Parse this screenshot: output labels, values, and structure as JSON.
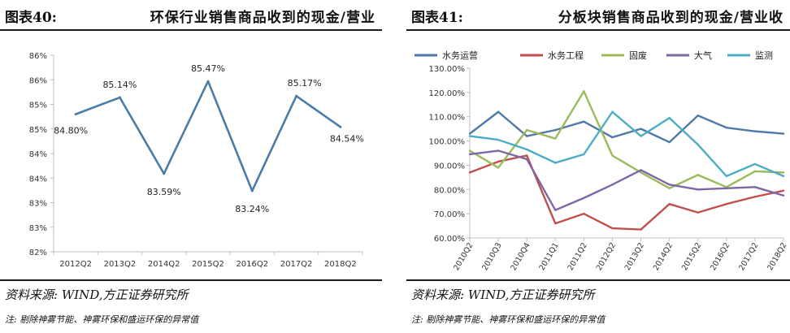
{
  "left": {
    "figure_no": "图表40:",
    "title": "环保行业销售商品收到的现金/营业",
    "source": "资料来源: WIND,方正证券研究所",
    "note": "注: 剔除神雾节能、神雾环保和盛运环保的异常值"
  },
  "right": {
    "figure_no": "图表41:",
    "title": "分板块销售商品收到的现金/营业收",
    "source": "资料来源: WIND,方正证券研究所",
    "note": "注: 剔除神雾节能、神雾环保和盛运环保的异常值"
  },
  "chart_data": [
    {
      "type": "line",
      "title": "环保行业销售商品收到的现金/营业",
      "categories": [
        "2012Q2",
        "2013Q2",
        "2014Q2",
        "2015Q2",
        "2016Q2",
        "2017Q2",
        "2018Q2"
      ],
      "values": [
        84.8,
        85.14,
        83.59,
        85.47,
        83.24,
        85.17,
        84.54
      ],
      "data_labels": [
        "84.80%",
        "85.14%",
        "83.59%",
        "85.47%",
        "83.24%",
        "85.17%",
        "84.54%"
      ],
      "y_ticks": [
        "82%",
        "83%",
        "83%",
        "84%",
        "84%",
        "85%",
        "85%",
        "86%",
        "86%"
      ],
      "ylim": [
        82.0,
        86.0
      ],
      "series_color": "#4a7ca8",
      "grid": false,
      "legend": "none"
    },
    {
      "type": "line",
      "title": "分板块销售商品收到的现金/营业收",
      "categories": [
        "2010Q2",
        "2010Q3",
        "2010Q4",
        "2011Q1",
        "2011Q2",
        "2012Q2",
        "2013Q2",
        "2014Q2",
        "2015Q2",
        "2016Q2",
        "2017Q2",
        "2018Q2"
      ],
      "series": [
        {
          "name": "水务运营",
          "color": "#4f79a8",
          "values": [
            103,
            112,
            102,
            104.5,
            108,
            101.5,
            105,
            99.5,
            110.5,
            105.5,
            104,
            103
          ]
        },
        {
          "name": "水务工程",
          "color": "#c0504d",
          "values": [
            87,
            91.5,
            94,
            66,
            70,
            64,
            63.5,
            74,
            70.5,
            74,
            77,
            79.5
          ]
        },
        {
          "name": "固废",
          "color": "#9bbb59",
          "values": [
            96,
            89,
            104.5,
            101,
            120.5,
            94,
            87,
            80.5,
            86,
            81,
            87.5,
            87
          ]
        },
        {
          "name": "大气",
          "color": "#7f66a6",
          "values": [
            94.5,
            96,
            92.5,
            71.5,
            76.5,
            82,
            88,
            82,
            80,
            80.5,
            81,
            77.5
          ]
        },
        {
          "name": "监测",
          "color": "#4bacc6",
          "values": [
            102,
            100.5,
            96.5,
            91,
            94.5,
            112,
            102,
            109.5,
            98.5,
            85.5,
            90.5,
            85.5
          ]
        }
      ],
      "y_ticks": [
        "60.00%",
        "70.00%",
        "80.00%",
        "90.00%",
        "100.00%",
        "110.00%",
        "120.00%",
        "130.00%"
      ],
      "ylim": [
        60,
        130
      ],
      "grid": false,
      "legend": "top"
    }
  ]
}
